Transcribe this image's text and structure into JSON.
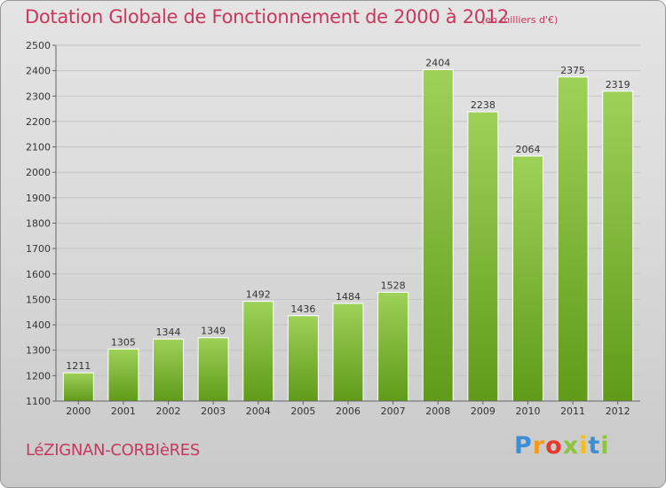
{
  "title": "Dotation Globale de Fonctionnement de 2000 à 2012",
  "unit_note": "(en milliers d'€)",
  "commune": "LéZIGNAN-CORBIèRES",
  "logo": {
    "letters": [
      "P",
      "r",
      "o",
      "x",
      "i",
      "t",
      "i"
    ],
    "colors": [
      "#3c8fd4",
      "#f29a1f",
      "#e23b2e",
      "#8cc63f",
      "#f2c01d",
      "#3c8fd4",
      "#8cc63f"
    ]
  },
  "colors": {
    "title": "#c8385e",
    "bar_top": "#9ed158",
    "bar_bottom": "#5f9b19"
  },
  "chart_data": {
    "type": "bar",
    "categories": [
      "2000",
      "2001",
      "2002",
      "2003",
      "2004",
      "2005",
      "2006",
      "2007",
      "2008",
      "2009",
      "2010",
      "2011",
      "2012"
    ],
    "values": [
      1211,
      1305,
      1344,
      1349,
      1492,
      1436,
      1484,
      1528,
      2404,
      2238,
      2064,
      2375,
      2319
    ],
    "ylim": [
      1100,
      2500
    ],
    "yticks": [
      1100,
      1200,
      1300,
      1400,
      1500,
      1600,
      1700,
      1800,
      1900,
      2000,
      2100,
      2200,
      2300,
      2400,
      2500
    ],
    "grid": true,
    "data_labels": true
  }
}
